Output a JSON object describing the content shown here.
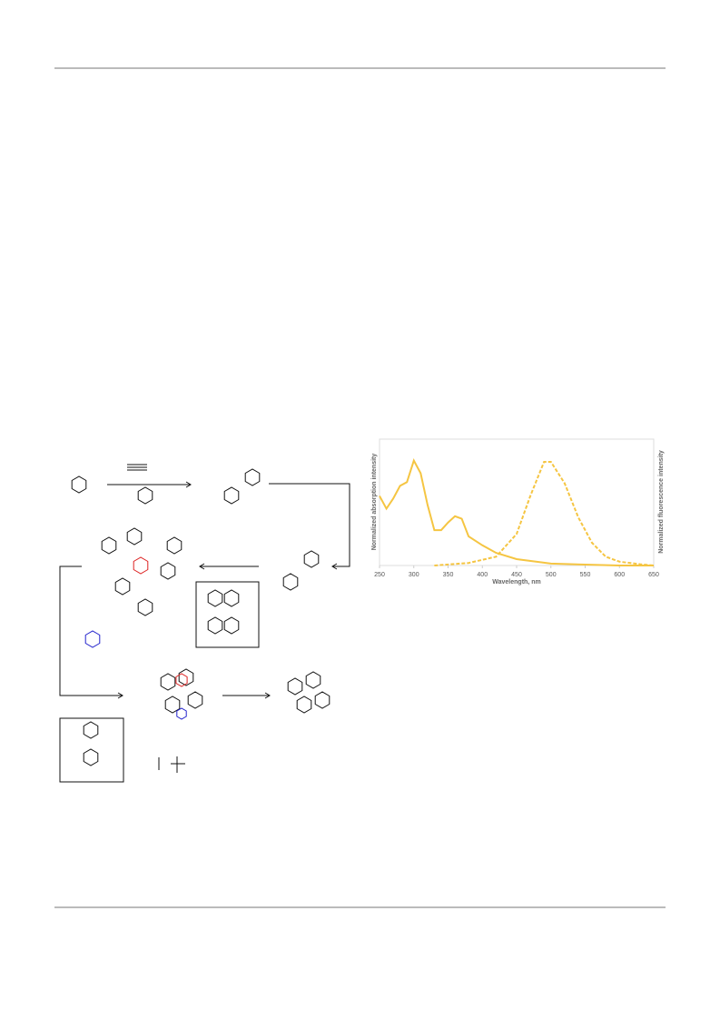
{
  "chart_data": {
    "type": "line",
    "xlabel": "Wavelength, nm",
    "ylabel": "Normalized absorption intensity",
    "y2label": "Normalized fluorescence intensity",
    "xlim": [
      250,
      650
    ],
    "xticks": [
      250,
      300,
      350,
      400,
      450,
      500,
      550,
      600,
      650
    ],
    "ylim": [
      0,
      1
    ],
    "y2lim": [
      0,
      1
    ],
    "series": [
      {
        "name": "absorption",
        "color": "#f5c542",
        "dash": false,
        "x": [
          250,
          260,
          270,
          280,
          290,
          300,
          310,
          320,
          330,
          340,
          350,
          360,
          370,
          380,
          400,
          420,
          450,
          500,
          550,
          600,
          650
        ],
        "values": [
          0.55,
          0.45,
          0.53,
          0.63,
          0.66,
          0.83,
          0.73,
          0.48,
          0.28,
          0.28,
          0.34,
          0.39,
          0.37,
          0.23,
          0.16,
          0.1,
          0.05,
          0.015,
          0.007,
          0,
          0
        ]
      },
      {
        "name": "fluorescence",
        "color": "#f5c542",
        "dash": true,
        "axis": "y2",
        "x": [
          330,
          380,
          420,
          450,
          470,
          490,
          500,
          520,
          540,
          560,
          580,
          600,
          630,
          650
        ],
        "values": [
          0,
          0.02,
          0.07,
          0.25,
          0.55,
          0.82,
          0.82,
          0.65,
          0.38,
          0.18,
          0.07,
          0.03,
          0.01,
          0
        ]
      }
    ]
  }
}
